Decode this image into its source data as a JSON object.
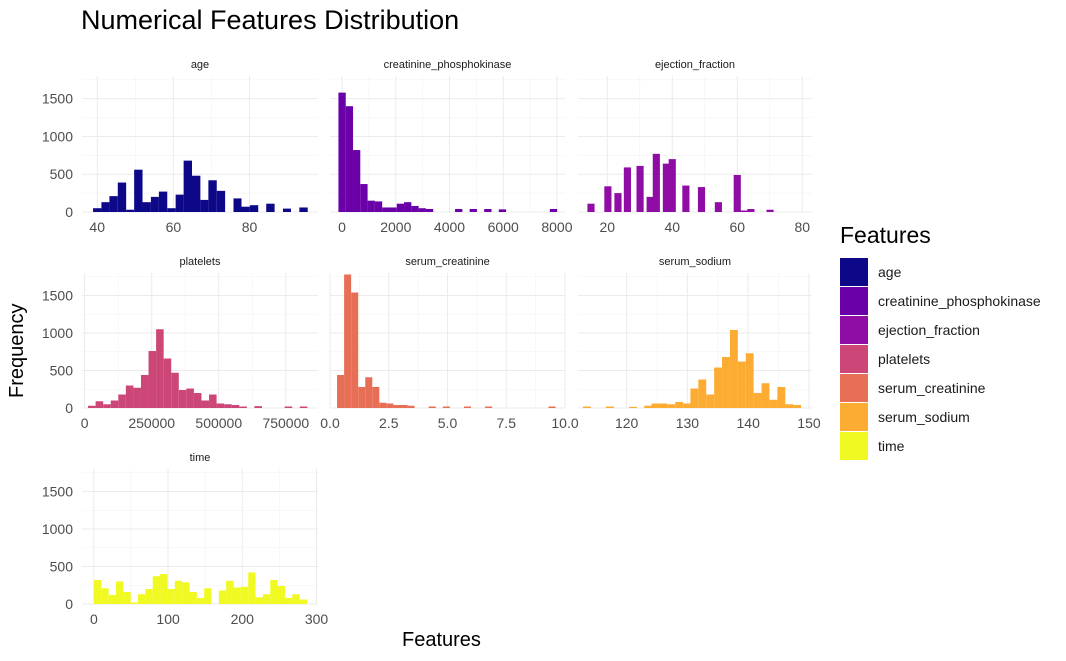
{
  "chart_data": {
    "type": "bar",
    "title": "Numerical Features Distribution",
    "xlabel": "Features",
    "ylabel": "Frequency",
    "legend": {
      "title": "Features",
      "position": "right"
    },
    "y_ticks": [
      0,
      500,
      1000,
      1500
    ],
    "ylim": [
      0,
      1800
    ],
    "grid": true,
    "facets": [
      {
        "name": "age",
        "color": "#0d0887",
        "xlim": [
          36,
          98
        ],
        "x_ticks": [
          {
            "v": 40,
            "label": "40"
          },
          {
            "v": 60,
            "label": "60"
          },
          {
            "v": 80,
            "label": "80"
          }
        ],
        "bins": [
          [
            38.9,
            41.1,
            50
          ],
          [
            41.1,
            43.2,
            130
          ],
          [
            43.2,
            45.4,
            210
          ],
          [
            45.4,
            47.6,
            390
          ],
          [
            47.6,
            49.7,
            30
          ],
          [
            49.7,
            51.9,
            560
          ],
          [
            51.9,
            54.1,
            130
          ],
          [
            54.1,
            56.2,
            200
          ],
          [
            56.2,
            58.4,
            270
          ],
          [
            58.4,
            60.6,
            50
          ],
          [
            60.6,
            62.7,
            230
          ],
          [
            62.7,
            64.9,
            680
          ],
          [
            64.9,
            67.1,
            480
          ],
          [
            67.1,
            69.2,
            160
          ],
          [
            69.2,
            71.4,
            420
          ],
          [
            71.4,
            73.6,
            280
          ],
          [
            75.8,
            77.9,
            180
          ],
          [
            77.9,
            80.1,
            70
          ],
          [
            80.1,
            82.3,
            90
          ],
          [
            84.4,
            86.6,
            110
          ],
          [
            88.8,
            90.9,
            45
          ],
          [
            93.1,
            95.3,
            60
          ]
        ]
      },
      {
        "name": "creatinine_phosphokinase",
        "color": "#6a00a8",
        "xlim": [
          -450,
          8300
        ],
        "x_ticks": [
          {
            "v": 0,
            "label": "0"
          },
          {
            "v": 2000,
            "label": "2000"
          },
          {
            "v": 4000,
            "label": "4000"
          },
          {
            "v": 6000,
            "label": "6000"
          },
          {
            "v": 8000,
            "label": "8000"
          }
        ],
        "bins": [
          [
            -136,
            136,
            1580
          ],
          [
            136,
            407,
            1400
          ],
          [
            407,
            678,
            820
          ],
          [
            678,
            950,
            370
          ],
          [
            950,
            1221,
            150
          ],
          [
            1221,
            1493,
            140
          ],
          [
            1493,
            1764,
            60
          ],
          [
            1764,
            2035,
            60
          ],
          [
            2035,
            2307,
            110
          ],
          [
            2307,
            2578,
            130
          ],
          [
            2578,
            2850,
            80
          ],
          [
            2850,
            3121,
            50
          ],
          [
            3121,
            3392,
            40
          ],
          [
            4207,
            4478,
            40
          ],
          [
            4750,
            5021,
            40
          ],
          [
            5293,
            5564,
            40
          ],
          [
            5835,
            6107,
            35
          ],
          [
            7735,
            8007,
            40
          ]
        ]
      },
      {
        "name": "ejection_fraction",
        "color": "#8f0da4",
        "xlim": [
          11,
          83
        ],
        "x_ticks": [
          {
            "v": 20,
            "label": "20"
          },
          {
            "v": 40,
            "label": "40"
          },
          {
            "v": 60,
            "label": "60"
          },
          {
            "v": 80,
            "label": "80"
          }
        ],
        "bins": [
          [
            13.9,
            16.1,
            110
          ],
          [
            19.1,
            21.3,
            340
          ],
          [
            22.2,
            24.4,
            250
          ],
          [
            25.1,
            27.3,
            590
          ],
          [
            29.0,
            31.2,
            610
          ],
          [
            32.1,
            34.3,
            200
          ],
          [
            34.0,
            36.2,
            770
          ],
          [
            37.1,
            39.3,
            640
          ],
          [
            38.9,
            41.1,
            700
          ],
          [
            43.1,
            45.3,
            350
          ],
          [
            47.9,
            50.1,
            330
          ],
          [
            53.1,
            55.3,
            130
          ],
          [
            58.9,
            61.1,
            490
          ],
          [
            61.0,
            63.2,
            20
          ],
          [
            63.1,
            65.3,
            40
          ],
          [
            69.0,
            71.2,
            30
          ]
        ]
      },
      {
        "name": "platelets",
        "color": "#cc4778",
        "xlim": [
          -10000,
          870000
        ],
        "x_ticks": [
          {
            "v": 0,
            "label": "0"
          },
          {
            "v": 250000,
            "label": "250000"
          },
          {
            "v": 500000,
            "label": "500000"
          },
          {
            "v": 750000,
            "label": "750000"
          }
        ],
        "bins": [
          [
            12500,
            40700,
            30
          ],
          [
            40700,
            68900,
            90
          ],
          [
            68900,
            97100,
            50
          ],
          [
            97100,
            125300,
            100
          ],
          [
            125300,
            153500,
            180
          ],
          [
            153500,
            181700,
            300
          ],
          [
            181700,
            209900,
            270
          ],
          [
            209900,
            238100,
            440
          ],
          [
            238100,
            266300,
            760
          ],
          [
            266300,
            294500,
            1050
          ],
          [
            294500,
            322700,
            660
          ],
          [
            322700,
            350900,
            470
          ],
          [
            350900,
            379100,
            240
          ],
          [
            379100,
            407300,
            260
          ],
          [
            407300,
            435500,
            200
          ],
          [
            435500,
            463700,
            100
          ],
          [
            463700,
            491900,
            180
          ],
          [
            491900,
            520100,
            60
          ],
          [
            520100,
            548300,
            50
          ],
          [
            548300,
            576500,
            40
          ],
          [
            576500,
            604700,
            20
          ],
          [
            632900,
            661100,
            25
          ],
          [
            745700,
            773900,
            20
          ],
          [
            802100,
            830300,
            20
          ]
        ]
      },
      {
        "name": "serum_creatinine",
        "color": "#e76f56",
        "xlim": [
          0,
          10
        ],
        "x_ticks": [
          {
            "v": 0,
            "label": "0.0"
          },
          {
            "v": 2.5,
            "label": "2.5"
          },
          {
            "v": 5,
            "label": "5.0"
          },
          {
            "v": 7.5,
            "label": "7.5"
          },
          {
            "v": 10,
            "label": "10.0"
          }
        ],
        "bins": [
          [
            0.3,
            0.6,
            440
          ],
          [
            0.6,
            0.9,
            1780
          ],
          [
            0.9,
            1.2,
            1540
          ],
          [
            1.2,
            1.5,
            280
          ],
          [
            1.5,
            1.8,
            410
          ],
          [
            1.8,
            2.1,
            280
          ],
          [
            2.1,
            2.4,
            70
          ],
          [
            2.4,
            2.7,
            60
          ],
          [
            2.7,
            3.0,
            40
          ],
          [
            3.0,
            3.3,
            40
          ],
          [
            3.3,
            3.6,
            30
          ],
          [
            4.2,
            4.5,
            20
          ],
          [
            4.8,
            5.1,
            20
          ],
          [
            5.7,
            6.0,
            20
          ],
          [
            6.6,
            6.9,
            20
          ],
          [
            9.3,
            9.6,
            20
          ]
        ]
      },
      {
        "name": "serum_sodium",
        "color": "#fdac33",
        "xlim": [
          112,
          150.5
        ],
        "x_ticks": [
          {
            "v": 120,
            "label": "120"
          },
          {
            "v": 130,
            "label": "130"
          },
          {
            "v": 140,
            "label": "140"
          },
          {
            "v": 150,
            "label": "150"
          }
        ],
        "bins": [
          [
            112.8,
            114.1,
            20
          ],
          [
            116.6,
            117.9,
            20
          ],
          [
            120.4,
            121.7,
            15
          ],
          [
            122.9,
            124.2,
            30
          ],
          [
            124.1,
            125.4,
            60
          ],
          [
            125.4,
            126.7,
            60
          ],
          [
            126.7,
            128.0,
            50
          ],
          [
            128.0,
            129.3,
            80
          ],
          [
            129.3,
            130.6,
            60
          ],
          [
            130.5,
            131.8,
            260
          ],
          [
            131.8,
            133.1,
            380
          ],
          [
            133.1,
            134.4,
            180
          ],
          [
            134.4,
            135.7,
            540
          ],
          [
            135.7,
            137.0,
            680
          ],
          [
            137.0,
            138.3,
            1040
          ],
          [
            138.3,
            139.6,
            620
          ],
          [
            139.6,
            140.9,
            730
          ],
          [
            140.9,
            142.2,
            200
          ],
          [
            142.2,
            143.5,
            330
          ],
          [
            143.5,
            144.8,
            110
          ],
          [
            144.8,
            146.1,
            280
          ],
          [
            146.1,
            147.4,
            50
          ],
          [
            147.4,
            148.7,
            40
          ]
        ]
      },
      {
        "name": "time",
        "color": "#f0f921",
        "xlim": [
          -16,
          302
        ],
        "x_ticks": [
          {
            "v": 0,
            "label": "0"
          },
          {
            "v": 100,
            "label": "100"
          },
          {
            "v": 200,
            "label": "200"
          },
          {
            "v": 300,
            "label": "300"
          }
        ],
        "bins": [
          [
            0.1,
            10,
            320
          ],
          [
            10,
            19.9,
            210
          ],
          [
            19.9,
            29.8,
            120
          ],
          [
            29.8,
            39.7,
            300
          ],
          [
            39.7,
            49.6,
            160
          ],
          [
            49.6,
            59.5,
            20
          ],
          [
            59.5,
            69.4,
            130
          ],
          [
            69.4,
            79.3,
            200
          ],
          [
            79.3,
            89.2,
            370
          ],
          [
            89.2,
            99.1,
            400
          ],
          [
            99.1,
            109,
            200
          ],
          [
            109,
            118.9,
            310
          ],
          [
            118.9,
            128.8,
            290
          ],
          [
            128.8,
            138.7,
            160
          ],
          [
            138.7,
            148.6,
            80
          ],
          [
            148.6,
            158.5,
            210
          ],
          [
            168.4,
            178.3,
            180
          ],
          [
            178.3,
            188.2,
            310
          ],
          [
            188.2,
            198.1,
            220
          ],
          [
            198.1,
            208,
            230
          ],
          [
            208,
            217.9,
            420
          ],
          [
            217.9,
            227.8,
            90
          ],
          [
            227.8,
            237.7,
            130
          ],
          [
            237.7,
            247.6,
            320
          ],
          [
            247.6,
            257.5,
            240
          ],
          [
            257.5,
            267.4,
            80
          ],
          [
            267.4,
            277.3,
            130
          ],
          [
            277.3,
            287.2,
            60
          ]
        ]
      }
    ]
  }
}
